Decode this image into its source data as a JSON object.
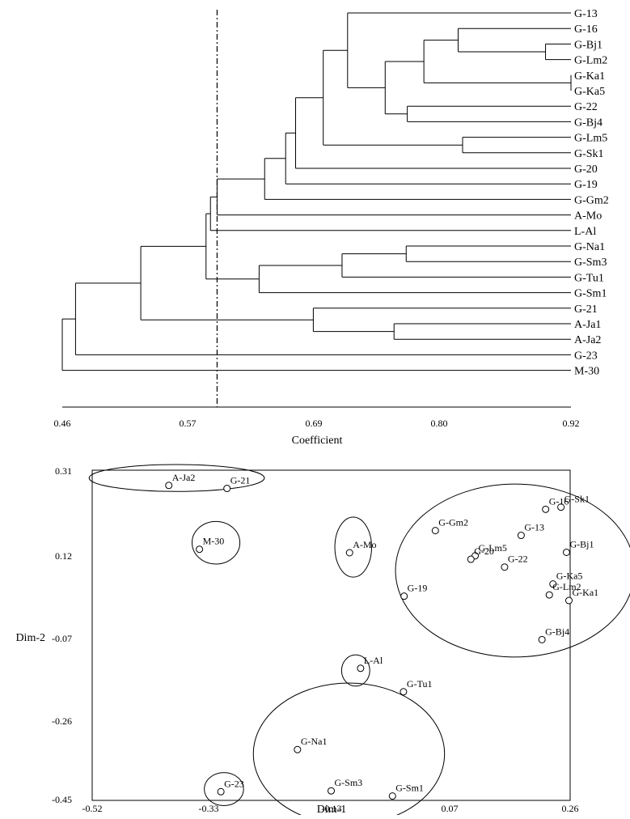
{
  "chart_data": [
    {
      "type": "dendrogram",
      "xlabel": "Coefficient",
      "xlim": [
        0.46,
        0.92
      ],
      "xticks": [
        "0.46",
        "0.57",
        "0.69",
        "0.80",
        "0.92"
      ],
      "cut_line": 0.6,
      "leaves": [
        "G-13",
        "G-16",
        "G-Bj1",
        "G-Lm2",
        "G-Ka1",
        "G-Ka5",
        "G-22",
        "G-Bj4",
        "G-Lm5",
        "G-Sk1",
        "G-20",
        "G-19",
        "G-Gm2",
        "A-Mo",
        "L-Al",
        "G-Na1",
        "G-Sm3",
        "G-Tu1",
        "G-Sm1",
        "G-21",
        "A-Ja1",
        "A-Ja2",
        "G-23",
        "M-30"
      ],
      "merges": [
        {
          "id": "n1",
          "a": "G-Ka1",
          "b": "G-Ka5",
          "h": 0.92
        },
        {
          "id": "n2",
          "a": "G-Bj1",
          "b": "G-Lm2",
          "h": 0.897
        },
        {
          "id": "n3",
          "a": "G-16",
          "b": "n2",
          "h": 0.818
        },
        {
          "id": "n4",
          "a": "n3",
          "b": "n1",
          "h": 0.787
        },
        {
          "id": "n5",
          "a": "G-22",
          "b": "G-Bj4",
          "h": 0.772
        },
        {
          "id": "n6",
          "a": "n4",
          "b": "n5",
          "h": 0.752
        },
        {
          "id": "n7",
          "a": "G-13",
          "b": "n6",
          "h": 0.718
        },
        {
          "id": "n8",
          "a": "G-Lm5",
          "b": "G-Sk1",
          "h": 0.822
        },
        {
          "id": "n9",
          "a": "n7",
          "b": "n8",
          "h": 0.696
        },
        {
          "id": "n10",
          "a": "n9",
          "b": "G-20",
          "h": 0.671
        },
        {
          "id": "n11",
          "a": "n10",
          "b": "G-19",
          "h": 0.662
        },
        {
          "id": "n12",
          "a": "n11",
          "b": "G-Gm2",
          "h": 0.643
        },
        {
          "id": "n13",
          "a": "n12",
          "b": "A-Mo",
          "h": 0.6
        },
        {
          "id": "n14",
          "a": "n13",
          "b": "L-Al",
          "h": 0.594
        },
        {
          "id": "n15",
          "a": "G-Na1",
          "b": "G-Sm3",
          "h": 0.771
        },
        {
          "id": "n16",
          "a": "n15",
          "b": "G-Tu1",
          "h": 0.713
        },
        {
          "id": "n17",
          "a": "n16",
          "b": "G-Sm1",
          "h": 0.638
        },
        {
          "id": "n18",
          "a": "n14",
          "b": "n17",
          "h": 0.59
        },
        {
          "id": "n19",
          "a": "A-Ja1",
          "b": "A-Ja2",
          "h": 0.76
        },
        {
          "id": "n20",
          "a": "G-21",
          "b": "n19",
          "h": 0.687
        },
        {
          "id": "n21",
          "a": "n18",
          "b": "n20",
          "h": 0.531
        },
        {
          "id": "n22",
          "a": "n21",
          "b": "G-23",
          "h": 0.472
        },
        {
          "id": "n23",
          "a": "n22",
          "b": "M-30",
          "h": 0.46
        }
      ]
    },
    {
      "type": "scatter",
      "xlabel": "Dim-1",
      "ylabel": "Dim-2",
      "xlim": [
        -0.52,
        0.26
      ],
      "ylim": [
        -0.45,
        0.31
      ],
      "xticks": [
        "-0.52",
        "-0.33",
        "-0.13",
        "0.07",
        "0.26"
      ],
      "yticks": [
        "0.31",
        "0.12",
        "-0.07",
        "-0.26",
        "-0.45"
      ],
      "points": [
        {
          "name": "G-13",
          "x": 0.18,
          "y": 0.16
        },
        {
          "name": "G-16",
          "x": 0.22,
          "y": 0.22
        },
        {
          "name": "G-Sk1",
          "x": 0.245,
          "y": 0.225
        },
        {
          "name": "G-Gm2",
          "x": 0.04,
          "y": 0.171
        },
        {
          "name": "G-Lm5",
          "x": 0.105,
          "y": 0.113
        },
        {
          "name": "G-20",
          "x": 0.098,
          "y": 0.105
        },
        {
          "name": "G-22",
          "x": 0.153,
          "y": 0.087
        },
        {
          "name": "G-Bj1",
          "x": 0.254,
          "y": 0.121
        },
        {
          "name": "G-Ka5",
          "x": 0.232,
          "y": 0.048
        },
        {
          "name": "G-Lm2",
          "x": 0.226,
          "y": 0.023
        },
        {
          "name": "G-Ka1",
          "x": 0.258,
          "y": 0.01
        },
        {
          "name": "G-19",
          "x": -0.011,
          "y": 0.02
        },
        {
          "name": "G-Bj4",
          "x": 0.214,
          "y": -0.08
        },
        {
          "name": "A-Mo",
          "x": -0.1,
          "y": 0.12
        },
        {
          "name": "M-30",
          "x": -0.345,
          "y": 0.128
        },
        {
          "name": "A-Ja2",
          "x": -0.395,
          "y": 0.275
        },
        {
          "name": "G-21",
          "x": -0.3,
          "y": 0.268
        },
        {
          "name": "L-Al",
          "x": -0.082,
          "y": -0.146
        },
        {
          "name": "G-Tu1",
          "x": -0.012,
          "y": -0.2
        },
        {
          "name": "G-Na1",
          "x": -0.185,
          "y": -0.333
        },
        {
          "name": "G-23",
          "x": -0.31,
          "y": -0.43
        },
        {
          "name": "G-Sm3",
          "x": -0.13,
          "y": -0.428
        },
        {
          "name": "G-Sm1",
          "x": -0.03,
          "y": -0.44
        }
      ],
      "clusters": [
        {
          "cx": -0.382,
          "cy": 0.292,
          "rx": 0.143,
          "ry": 0.031
        },
        {
          "cx": -0.318,
          "cy": 0.143,
          "rx": 0.039,
          "ry": 0.049
        },
        {
          "cx": -0.094,
          "cy": 0.133,
          "rx": 0.03,
          "ry": 0.069
        },
        {
          "cx": 0.17,
          "cy": 0.079,
          "rx": 0.195,
          "ry": 0.199
        },
        {
          "cx": -0.09,
          "cy": -0.151,
          "rx": 0.023,
          "ry": 0.036
        },
        {
          "cx": -0.101,
          "cy": -0.343,
          "rx": 0.156,
          "ry": 0.163
        },
        {
          "cx": -0.305,
          "cy": -0.424,
          "rx": 0.032,
          "ry": 0.038
        }
      ]
    }
  ]
}
